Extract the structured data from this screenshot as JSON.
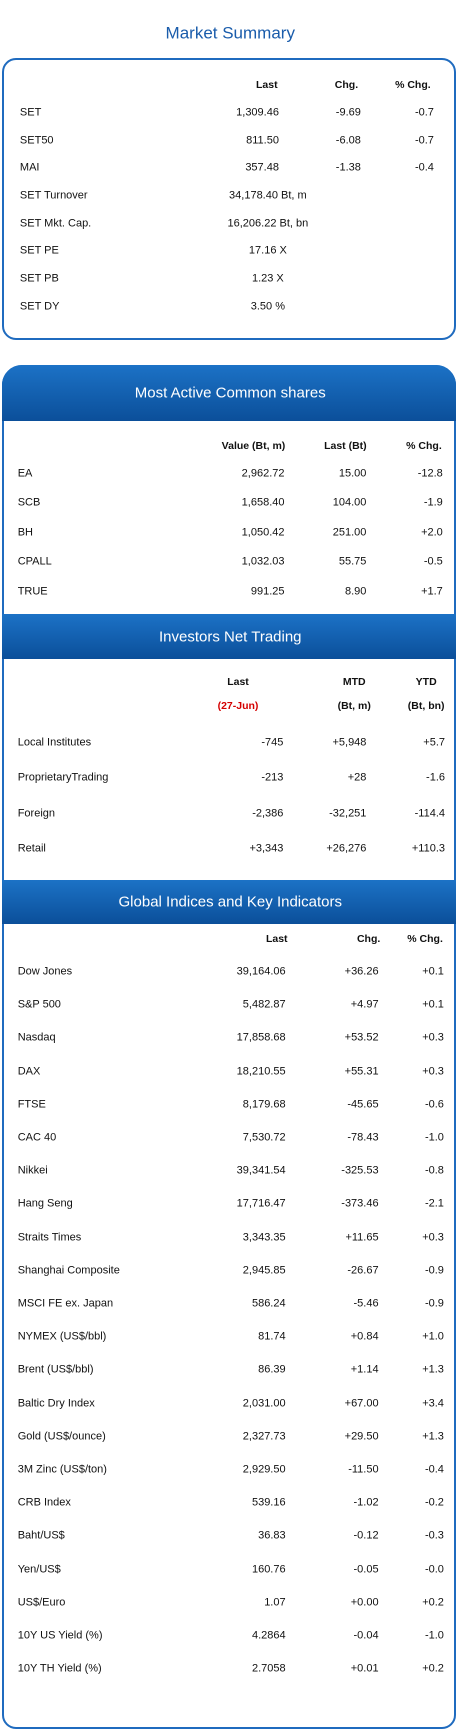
{
  "market_summary": {
    "title": "Market Summary",
    "columns": [
      "Last",
      "Chg.",
      "% Chg."
    ],
    "rows": [
      [
        "SET",
        "1,309.46",
        "-9.69",
        "-0.7"
      ],
      [
        "SET50",
        "811.50",
        "-6.08",
        "-0.7"
      ],
      [
        "MAI",
        "357.48",
        "-1.38",
        "-0.4"
      ],
      [
        "SET Turnover",
        "34,178.40 Bt, m"
      ],
      [
        "SET Mkt. Cap.",
        "16,206.22 Bt, bn"
      ],
      [
        "SET PE",
        "17.16 X"
      ],
      [
        "SET PB",
        "1.23 X"
      ],
      [
        "SET DY",
        "3.50 %"
      ]
    ]
  },
  "most_active": {
    "title": "Most Active Common shares",
    "columns": [
      "Value (Bt, m)",
      "Last (Bt)",
      "% Chg."
    ],
    "rows": [
      [
        "EA",
        "2,962.72",
        "15.00",
        "-12.8"
      ],
      [
        "SCB",
        "1,658.40",
        "104.00",
        "-1.9"
      ],
      [
        "BH",
        "1,050.42",
        "251.00",
        "+2.0"
      ],
      [
        "CPALL",
        "1,032.03",
        "55.75",
        "-0.5"
      ],
      [
        "TRUE",
        "991.25",
        "8.90",
        "+1.7"
      ]
    ]
  },
  "investors": {
    "title": "Investors Net Trading",
    "columns": [
      "Last",
      "MTD",
      "YTD"
    ],
    "subcolumns": [
      "(27-Jun)",
      "(Bt, m)",
      "(Bt, bn)"
    ],
    "rows": [
      [
        "Local Institutes",
        "-745",
        "+5,948",
        "+5.7"
      ],
      [
        "ProprietaryTrading",
        "-213",
        "+28",
        "-1.6"
      ],
      [
        "Foreign",
        "-2,386",
        "-32,251",
        "-114.4"
      ],
      [
        "Retail",
        "+3,343",
        "+26,276",
        "+110.3"
      ]
    ]
  },
  "global": {
    "title": "Global Indices and Key Indicators",
    "columns": [
      "Last",
      "Chg.",
      "% Chg."
    ],
    "rows": [
      [
        "Dow Jones",
        "39,164.06",
        "+36.26",
        "+0.1"
      ],
      [
        "S&P 500",
        "5,482.87",
        "+4.97",
        "+0.1"
      ],
      [
        "Nasdaq",
        "17,858.68",
        "+53.52",
        "+0.3"
      ],
      [
        "DAX",
        "18,210.55",
        "+55.31",
        "+0.3"
      ],
      [
        "FTSE",
        "8,179.68",
        "-45.65",
        "-0.6"
      ],
      [
        "CAC 40",
        "7,530.72",
        "-78.43",
        "-1.0"
      ],
      [
        "Nikkei",
        "39,341.54",
        "-325.53",
        "-0.8"
      ],
      [
        "Hang Seng",
        "17,716.47",
        "-373.46",
        "-2.1"
      ],
      [
        "Straits Times",
        "3,343.35",
        "+11.65",
        "+0.3"
      ],
      [
        "Shanghai Composite",
        "2,945.85",
        "-26.67",
        "-0.9"
      ],
      [
        "MSCI FE ex. Japan",
        "586.24",
        "-5.46",
        "-0.9"
      ],
      [
        "NYMEX (US$/bbl)",
        "81.74",
        "+0.84",
        "+1.0"
      ],
      [
        "Brent (US$/bbl)",
        "86.39",
        "+1.14",
        "+1.3"
      ],
      [
        "Baltic Dry Index",
        "2,031.00",
        "+67.00",
        "+3.4"
      ],
      [
        "Gold (US$/ounce)",
        "2,327.73",
        "+29.50",
        "+1.3"
      ],
      [
        "3M Zinc (US$/ton)",
        "2,929.50",
        "-11.50",
        "-0.4"
      ],
      [
        "CRB Index",
        "539.16",
        "-1.02",
        "-0.2"
      ],
      [
        "Baht/US$",
        "36.83",
        "-0.12",
        "-0.3"
      ],
      [
        "Yen/US$",
        "160.76",
        "-0.05",
        "-0.0"
      ],
      [
        "US$/Euro",
        "1.07",
        "+0.00",
        "+0.2"
      ],
      [
        "10Y US Yield (%)",
        "4.2864",
        "-0.04",
        "-1.0"
      ],
      [
        "10Y TH Yield (%)",
        "2.7058",
        "+0.01",
        "+0.2"
      ]
    ]
  }
}
